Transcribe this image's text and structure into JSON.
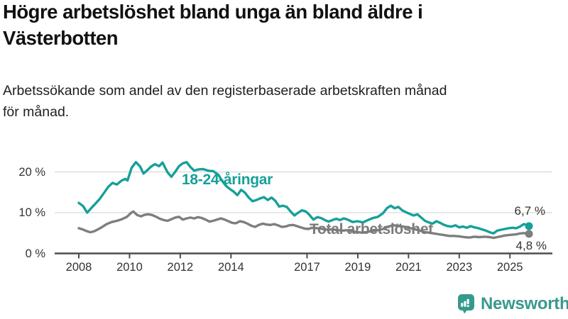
{
  "header": {
    "title_line1": "Högre arbetslöshet bland unga än bland äldre i",
    "title_line2": "Västerbotten",
    "subtitle_line1": "Arbetssökande som andel av den registerbaserade arbetskraften månad",
    "subtitle_line2": "för månad."
  },
  "footer": {
    "brand": "Newsworthy"
  },
  "colors": {
    "young_series": "#16a099",
    "total_series": "#7e7e7e",
    "grid": "#d9d9d9",
    "axis": "#4d4d4d",
    "logo": "#359a8d"
  },
  "chart_data": {
    "type": "line",
    "title": "Högre arbetslöshet bland unga än bland äldre i Västerbotten",
    "subtitle": "Arbetssökande som andel av den registerbaserade arbetskraften månad för månad.",
    "x_unit": "year (monthly data)",
    "xlim": [
      2007.05,
      2026.65
    ],
    "ylim": [
      0,
      24.5
    ],
    "grid": "horizontal",
    "legend_position": "inline-labels",
    "y_ticks": [
      {
        "value": 0,
        "label": "0 %"
      },
      {
        "value": 10,
        "label": "10 %"
      },
      {
        "value": 20,
        "label": "20 %"
      }
    ],
    "x_ticks": [
      {
        "value": 2008,
        "label": "2008"
      },
      {
        "value": 2010,
        "label": "2010"
      },
      {
        "value": 2012,
        "label": "2012"
      },
      {
        "value": 2014,
        "label": "2014"
      },
      {
        "value": 2017,
        "label": "2017"
      },
      {
        "value": 2019,
        "label": "2019"
      },
      {
        "value": 2021,
        "label": "2021"
      },
      {
        "value": 2023,
        "label": "2023"
      },
      {
        "value": 2025,
        "label": "2025"
      }
    ],
    "series": [
      {
        "name": "18-24-åringar",
        "color": "#16a099",
        "end_label": "6,7 %",
        "end_value": 6.7,
        "points": [
          [
            2008.0,
            12.4
          ],
          [
            2008.17,
            11.6
          ],
          [
            2008.33,
            10.0
          ],
          [
            2008.5,
            11.2
          ],
          [
            2008.67,
            12.3
          ],
          [
            2008.83,
            13.4
          ],
          [
            2009.0,
            14.9
          ],
          [
            2009.17,
            16.4
          ],
          [
            2009.33,
            17.3
          ],
          [
            2009.5,
            16.9
          ],
          [
            2009.67,
            17.8
          ],
          [
            2009.83,
            18.3
          ],
          [
            2009.92,
            17.9
          ],
          [
            2010.08,
            21.0
          ],
          [
            2010.25,
            22.4
          ],
          [
            2010.42,
            21.3
          ],
          [
            2010.55,
            19.6
          ],
          [
            2010.7,
            20.4
          ],
          [
            2010.85,
            21.3
          ],
          [
            2011.0,
            21.9
          ],
          [
            2011.17,
            21.4
          ],
          [
            2011.3,
            22.3
          ],
          [
            2011.5,
            19.9
          ],
          [
            2011.65,
            18.8
          ],
          [
            2011.8,
            20.0
          ],
          [
            2011.95,
            21.4
          ],
          [
            2012.1,
            22.1
          ],
          [
            2012.25,
            22.4
          ],
          [
            2012.4,
            21.2
          ],
          [
            2012.55,
            20.3
          ],
          [
            2012.7,
            20.6
          ],
          [
            2012.9,
            20.7
          ],
          [
            2013.1,
            20.3
          ],
          [
            2013.3,
            20.2
          ],
          [
            2013.5,
            19.3
          ],
          [
            2013.65,
            17.8
          ],
          [
            2013.8,
            16.6
          ],
          [
            2014.0,
            15.6
          ],
          [
            2014.1,
            15.2
          ],
          [
            2014.25,
            14.3
          ],
          [
            2014.4,
            15.6
          ],
          [
            2014.55,
            14.9
          ],
          [
            2014.7,
            13.7
          ],
          [
            2014.85,
            12.8
          ],
          [
            2015.0,
            13.1
          ],
          [
            2015.15,
            13.5
          ],
          [
            2015.3,
            13.8
          ],
          [
            2015.45,
            13.1
          ],
          [
            2015.6,
            13.7
          ],
          [
            2015.75,
            12.9
          ],
          [
            2015.9,
            11.5
          ],
          [
            2016.05,
            11.7
          ],
          [
            2016.2,
            11.4
          ],
          [
            2016.35,
            10.3
          ],
          [
            2016.5,
            9.3
          ],
          [
            2016.65,
            10.0
          ],
          [
            2016.8,
            10.6
          ],
          [
            2016.95,
            10.3
          ],
          [
            2017.1,
            9.4
          ],
          [
            2017.25,
            8.3
          ],
          [
            2017.4,
            8.9
          ],
          [
            2017.55,
            8.7
          ],
          [
            2017.7,
            8.2
          ],
          [
            2017.85,
            7.8
          ],
          [
            2018.0,
            8.2
          ],
          [
            2018.15,
            8.5
          ],
          [
            2018.3,
            8.2
          ],
          [
            2018.45,
            8.6
          ],
          [
            2018.6,
            8.3
          ],
          [
            2018.8,
            7.7
          ],
          [
            2019.0,
            7.9
          ],
          [
            2019.2,
            7.6
          ],
          [
            2019.4,
            8.2
          ],
          [
            2019.6,
            8.7
          ],
          [
            2019.8,
            9.0
          ],
          [
            2020.0,
            9.9
          ],
          [
            2020.15,
            11.1
          ],
          [
            2020.3,
            11.7
          ],
          [
            2020.45,
            11.1
          ],
          [
            2020.6,
            11.4
          ],
          [
            2020.75,
            10.6
          ],
          [
            2020.9,
            10.1
          ],
          [
            2021.05,
            9.7
          ],
          [
            2021.2,
            9.3
          ],
          [
            2021.35,
            9.6
          ],
          [
            2021.5,
            8.8
          ],
          [
            2021.65,
            8.0
          ],
          [
            2021.8,
            7.6
          ],
          [
            2021.95,
            7.3
          ],
          [
            2022.1,
            7.9
          ],
          [
            2022.25,
            7.5
          ],
          [
            2022.4,
            7.0
          ],
          [
            2022.55,
            6.7
          ],
          [
            2022.7,
            6.6
          ],
          [
            2022.85,
            6.9
          ],
          [
            2023.0,
            6.4
          ],
          [
            2023.15,
            6.6
          ],
          [
            2023.3,
            6.3
          ],
          [
            2023.45,
            6.7
          ],
          [
            2023.6,
            6.4
          ],
          [
            2023.75,
            6.2
          ],
          [
            2023.9,
            5.9
          ],
          [
            2024.05,
            5.6
          ],
          [
            2024.2,
            5.2
          ],
          [
            2024.35,
            4.9
          ],
          [
            2024.5,
            5.6
          ],
          [
            2024.65,
            5.8
          ],
          [
            2024.8,
            6.0
          ],
          [
            2024.95,
            6.2
          ],
          [
            2025.1,
            6.3
          ],
          [
            2025.25,
            6.2
          ],
          [
            2025.4,
            6.6
          ],
          [
            2025.55,
            7.2
          ],
          [
            2025.75,
            6.7
          ]
        ]
      },
      {
        "name": "Total arbetslöshet",
        "color": "#7e7e7e",
        "end_label": "4,8 %",
        "end_value": 4.8,
        "points": [
          [
            2008.0,
            6.2
          ],
          [
            2008.15,
            5.9
          ],
          [
            2008.3,
            5.5
          ],
          [
            2008.45,
            5.2
          ],
          [
            2008.6,
            5.4
          ],
          [
            2008.75,
            5.9
          ],
          [
            2008.9,
            6.4
          ],
          [
            2009.1,
            7.2
          ],
          [
            2009.3,
            7.7
          ],
          [
            2009.5,
            8.0
          ],
          [
            2009.7,
            8.4
          ],
          [
            2009.9,
            9.0
          ],
          [
            2010.05,
            9.9
          ],
          [
            2010.15,
            10.3
          ],
          [
            2010.3,
            9.4
          ],
          [
            2010.45,
            9.1
          ],
          [
            2010.6,
            9.5
          ],
          [
            2010.75,
            9.6
          ],
          [
            2010.9,
            9.4
          ],
          [
            2011.05,
            9.0
          ],
          [
            2011.2,
            8.5
          ],
          [
            2011.35,
            8.2
          ],
          [
            2011.5,
            8.0
          ],
          [
            2011.65,
            8.4
          ],
          [
            2011.8,
            8.8
          ],
          [
            2011.95,
            9.0
          ],
          [
            2012.1,
            8.3
          ],
          [
            2012.25,
            8.6
          ],
          [
            2012.4,
            8.8
          ],
          [
            2012.55,
            8.6
          ],
          [
            2012.7,
            8.9
          ],
          [
            2012.85,
            8.7
          ],
          [
            2013.0,
            8.3
          ],
          [
            2013.15,
            7.8
          ],
          [
            2013.3,
            8.0
          ],
          [
            2013.45,
            8.3
          ],
          [
            2013.6,
            8.6
          ],
          [
            2013.75,
            8.3
          ],
          [
            2013.9,
            7.9
          ],
          [
            2014.05,
            7.5
          ],
          [
            2014.2,
            7.4
          ],
          [
            2014.35,
            7.9
          ],
          [
            2014.5,
            7.7
          ],
          [
            2014.65,
            7.3
          ],
          [
            2014.8,
            6.8
          ],
          [
            2014.95,
            6.5
          ],
          [
            2015.1,
            7.0
          ],
          [
            2015.25,
            7.3
          ],
          [
            2015.4,
            7.1
          ],
          [
            2015.55,
            7.0
          ],
          [
            2015.7,
            7.2
          ],
          [
            2015.85,
            6.9
          ],
          [
            2016.0,
            6.5
          ],
          [
            2016.15,
            6.6
          ],
          [
            2016.3,
            6.9
          ],
          [
            2016.45,
            7.0
          ],
          [
            2016.6,
            6.7
          ],
          [
            2016.75,
            6.4
          ],
          [
            2016.9,
            6.1
          ],
          [
            2017.05,
            6.0
          ],
          [
            2017.2,
            6.3
          ],
          [
            2017.4,
            6.2
          ],
          [
            2017.6,
            6.0
          ],
          [
            2017.8,
            5.8
          ],
          [
            2018.0,
            5.9
          ],
          [
            2018.2,
            5.7
          ],
          [
            2018.4,
            5.6
          ],
          [
            2018.6,
            5.7
          ],
          [
            2018.8,
            5.4
          ],
          [
            2019.0,
            5.2
          ],
          [
            2019.2,
            5.1
          ],
          [
            2019.4,
            5.3
          ],
          [
            2019.6,
            5.5
          ],
          [
            2019.8,
            5.7
          ],
          [
            2020.0,
            6.0
          ],
          [
            2020.2,
            6.6
          ],
          [
            2020.4,
            6.9
          ],
          [
            2020.6,
            6.8
          ],
          [
            2020.8,
            6.6
          ],
          [
            2021.0,
            6.3
          ],
          [
            2021.2,
            6.0
          ],
          [
            2021.4,
            5.7
          ],
          [
            2021.6,
            5.3
          ],
          [
            2021.8,
            5.1
          ],
          [
            2022.0,
            4.9
          ],
          [
            2022.2,
            4.7
          ],
          [
            2022.4,
            4.5
          ],
          [
            2022.6,
            4.3
          ],
          [
            2022.8,
            4.3
          ],
          [
            2023.0,
            4.2
          ],
          [
            2023.2,
            4.0
          ],
          [
            2023.4,
            3.9
          ],
          [
            2023.6,
            4.1
          ],
          [
            2023.8,
            4.0
          ],
          [
            2024.0,
            4.1
          ],
          [
            2024.2,
            4.0
          ],
          [
            2024.35,
            3.8
          ],
          [
            2024.5,
            4.0
          ],
          [
            2024.65,
            4.2
          ],
          [
            2024.8,
            4.4
          ],
          [
            2024.95,
            4.5
          ],
          [
            2025.1,
            4.6
          ],
          [
            2025.25,
            4.7
          ],
          [
            2025.4,
            4.9
          ],
          [
            2025.55,
            5.0
          ],
          [
            2025.75,
            4.8
          ]
        ]
      }
    ]
  }
}
